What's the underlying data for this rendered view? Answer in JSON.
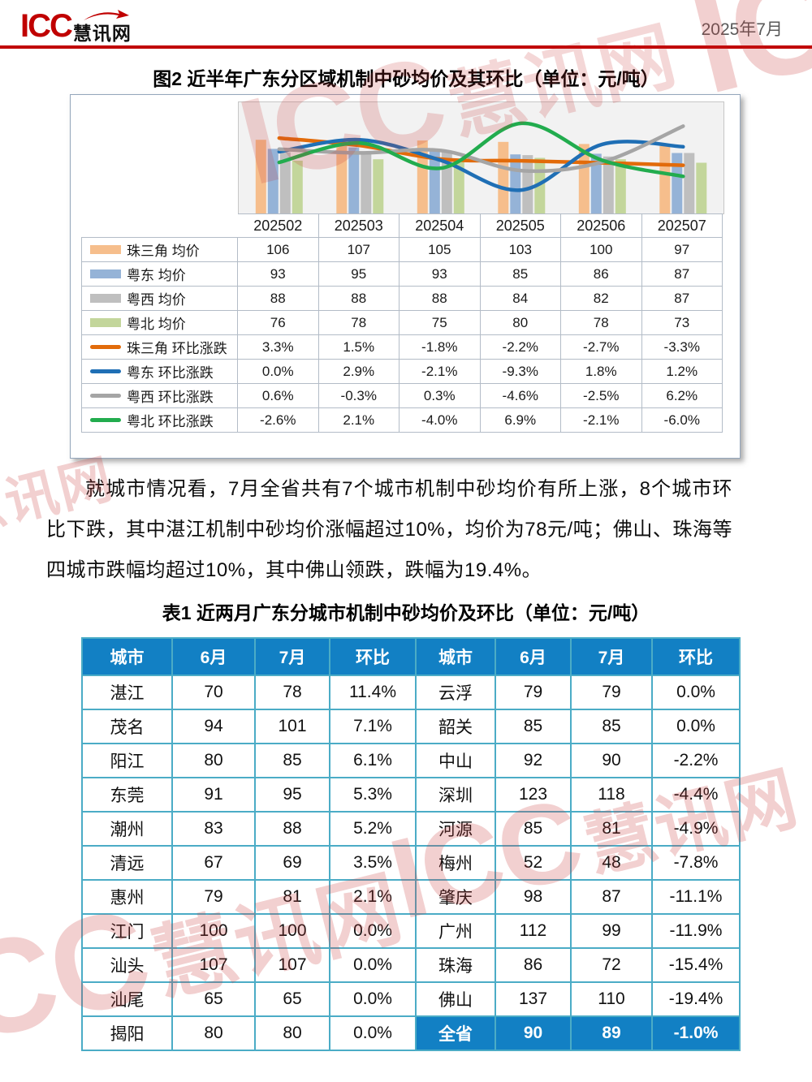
{
  "header": {
    "logo_icc": "ICC",
    "logo_cn": "慧讯网",
    "date": "2025年7月"
  },
  "figure": {
    "title": "图2 近半年广东分区域机制中砂均价及其环比（单位：元/吨）"
  },
  "chart_data": {
    "type": "bar+line",
    "categories": [
      "202502",
      "202503",
      "202504",
      "202505",
      "202506",
      "202507"
    ],
    "series": [
      {
        "name": "珠三角 均价",
        "kind": "bar",
        "color": "#F6BE8C",
        "values": [
          106,
          107,
          105,
          103,
          100,
          97
        ]
      },
      {
        "name": "粤东 均价",
        "kind": "bar",
        "color": "#95B3D7",
        "values": [
          93,
          95,
          93,
          85,
          86,
          87
        ]
      },
      {
        "name": "粤西 均价",
        "kind": "bar",
        "color": "#BFBFBF",
        "values": [
          88,
          88,
          88,
          84,
          82,
          87
        ]
      },
      {
        "name": "粤北 均价",
        "kind": "bar",
        "color": "#C3D69B",
        "values": [
          76,
          78,
          75,
          80,
          78,
          73
        ]
      },
      {
        "name": "珠三角 环比涨跌",
        "kind": "line",
        "color": "#E26B0A",
        "values": [
          3.3,
          1.5,
          -1.8,
          -2.2,
          -2.7,
          -3.3
        ]
      },
      {
        "name": "粤东 环比涨跌",
        "kind": "line",
        "color": "#1F6FB5",
        "values": [
          0.0,
          2.9,
          -2.1,
          -9.3,
          1.8,
          1.2
        ]
      },
      {
        "name": "粤西 环比涨跌",
        "kind": "line",
        "color": "#A5A5A5",
        "values": [
          0.6,
          -0.3,
          0.3,
          -4.6,
          -2.5,
          6.2
        ]
      },
      {
        "name": "粤北 环比涨跌",
        "kind": "line",
        "color": "#22AC4E",
        "values": [
          -2.6,
          2.1,
          -4.0,
          6.9,
          -2.1,
          -6.0
        ]
      }
    ],
    "bar_axis": {
      "min": 0,
      "max": 160
    },
    "line_axis": {
      "min": -15,
      "max": 12
    },
    "grid": false,
    "legend_position": "table-left",
    "plot_bg": "#F2F2F2"
  },
  "paragraph": {
    "text": "就城市情况看，7月全省共有7个城市机制中砂均价有所上涨，8个城市环比下跌，其中湛江机制中砂均价涨幅超过10%，均价为78元/吨；佛山、珠海等四城市跌幅均超过10%，其中佛山领跌，跌幅为19.4%。"
  },
  "city_table": {
    "title": "表1 近两月广东分城市机制中砂均价及环比（单位：元/吨）",
    "columns": [
      "城市",
      "6月",
      "7月",
      "环比",
      "城市",
      "6月",
      "7月",
      "环比"
    ],
    "left_rows": [
      {
        "city": "湛江",
        "jun": 70,
        "jul": 78,
        "mom": "11.4%"
      },
      {
        "city": "茂名",
        "jun": 94,
        "jul": 101,
        "mom": "7.1%"
      },
      {
        "city": "阳江",
        "jun": 80,
        "jul": 85,
        "mom": "6.1%"
      },
      {
        "city": "东莞",
        "jun": 91,
        "jul": 95,
        "mom": "5.3%"
      },
      {
        "city": "潮州",
        "jun": 83,
        "jul": 88,
        "mom": "5.2%"
      },
      {
        "city": "清远",
        "jun": 67,
        "jul": 69,
        "mom": "3.5%"
      },
      {
        "city": "惠州",
        "jun": 79,
        "jul": 81,
        "mom": "2.1%"
      },
      {
        "city": "江门",
        "jun": 100,
        "jul": 100,
        "mom": "0.0%"
      },
      {
        "city": "汕头",
        "jun": 107,
        "jul": 107,
        "mom": "0.0%"
      },
      {
        "city": "汕尾",
        "jun": 65,
        "jul": 65,
        "mom": "0.0%"
      },
      {
        "city": "揭阳",
        "jun": 80,
        "jul": 80,
        "mom": "0.0%"
      }
    ],
    "right_rows": [
      {
        "city": "云浮",
        "jun": 79,
        "jul": 79,
        "mom": "0.0%"
      },
      {
        "city": "韶关",
        "jun": 85,
        "jul": 85,
        "mom": "0.0%"
      },
      {
        "city": "中山",
        "jun": 92,
        "jul": 90,
        "mom": "-2.2%"
      },
      {
        "city": "深圳",
        "jun": 123,
        "jul": 118,
        "mom": "-4.4%"
      },
      {
        "city": "河源",
        "jun": 85,
        "jul": 81,
        "mom": "-4.9%"
      },
      {
        "city": "梅州",
        "jun": 52,
        "jul": 48,
        "mom": "-7.8%"
      },
      {
        "city": "肇庆",
        "jun": 98,
        "jul": 87,
        "mom": "-11.1%"
      },
      {
        "city": "广州",
        "jun": 112,
        "jul": 99,
        "mom": "-11.9%"
      },
      {
        "city": "珠海",
        "jun": 86,
        "jul": 72,
        "mom": "-15.4%"
      },
      {
        "city": "佛山",
        "jun": 137,
        "jul": 110,
        "mom": "-19.4%"
      },
      {
        "city": "全省",
        "jun": 90,
        "jul": 89,
        "mom": "-1.0%",
        "highlight": true
      }
    ],
    "header_bg": "#1280C4",
    "border_color": "#4BACC6"
  },
  "watermark": {
    "icc": "ICC",
    "cn": "慧讯网",
    "color": "rgba(201,57,57,0.24)"
  },
  "colors": {
    "accent_red": "#C00000",
    "date_gray": "#595959",
    "table_blue": "#1280C4"
  }
}
